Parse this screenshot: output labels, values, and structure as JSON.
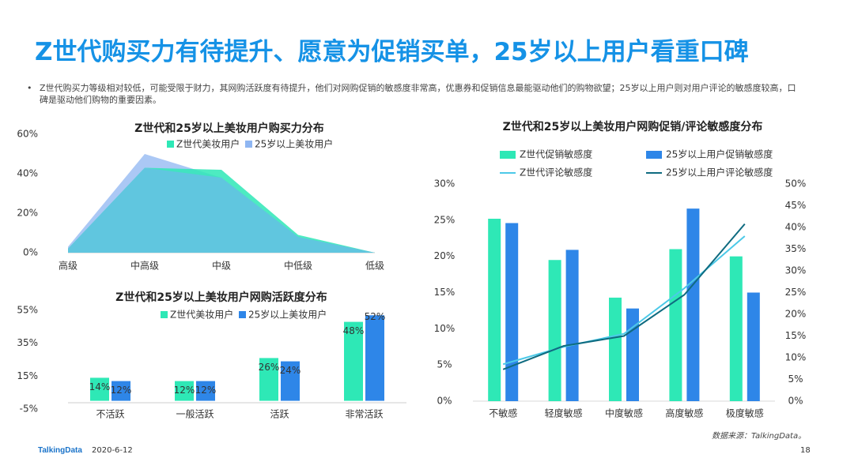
{
  "page": {
    "title": "Z世代购买力有待提升、愿意为促销买单，25岁以上用户看重口碑",
    "bullet": "Z世代购买力等级相对较低，可能受限于财力，其网购活跃度有待提升，他们对网购促销的敏感度非常高，优惠券和促销信息最能驱动他们的购物欲望；25岁以上用户则对用户评论的敏感度较高，口碑是驱动他们购物的重要因素。",
    "source": "数据来源：TalkingData。",
    "footer_logo": "TalkingData",
    "footer_date": "2020-6-12",
    "page_number": "18"
  },
  "colors": {
    "title_blue": "#1592e6",
    "z_green": "#2ee8b6",
    "age25_blue": "#2e86e8",
    "z_line": "#4cc9e8",
    "age25_line": "#0f6b80"
  },
  "chart_data": [
    {
      "type": "area",
      "title": "Z世代和25岁以上美妆用户购买力分布",
      "categories": [
        "高级",
        "中高级",
        "中级",
        "中低级",
        "低级"
      ],
      "series": [
        {
          "name": "Z世代美妆用户",
          "values": [
            2,
            43,
            42,
            9,
            0
          ]
        },
        {
          "name": "25岁以上美妆用户",
          "values": [
            3,
            50,
            38,
            8,
            0
          ]
        }
      ],
      "yticks": [
        "0%",
        "20%",
        "40%",
        "60%"
      ],
      "ylim": [
        0,
        60
      ],
      "legend": "top"
    },
    {
      "type": "bar",
      "title": "Z世代和25岁以上美妆用户网购活跃度分布",
      "categories": [
        "不活跃",
        "一般活跃",
        "活跃",
        "非常活跃"
      ],
      "series": [
        {
          "name": "Z世代美妆用户",
          "values": [
            14,
            12,
            26,
            48
          ],
          "labels": [
            "14%",
            "12%",
            "26%",
            "48%"
          ]
        },
        {
          "name": "25岁以上美妆用户",
          "values": [
            12,
            12,
            24,
            52
          ],
          "labels": [
            "12%",
            "12%",
            "24%",
            "52%"
          ]
        }
      ],
      "yticks": [
        "-5%",
        "15%",
        "35%",
        "55%"
      ],
      "ylim": [
        -5,
        55
      ],
      "legend": "top"
    },
    {
      "type": "bar",
      "title": "Z世代和25岁以上美妆用户网购促销/评论敏感度分布",
      "categories": [
        "不敏感",
        "轻度敏感",
        "中度敏感",
        "高度敏感",
        "极度敏感"
      ],
      "series": [
        {
          "name": "Z世代促销敏感度",
          "axis": "left",
          "values": [
            25.2,
            19.5,
            14.3,
            21.0,
            20.0
          ]
        },
        {
          "name": "25岁以上用户促销敏感度",
          "axis": "left",
          "values": [
            24.6,
            20.9,
            12.8,
            26.6,
            15.0
          ]
        }
      ],
      "lines": [
        {
          "name": "Z世代评论敏感度",
          "axis": "right",
          "values": [
            8.5,
            12.5,
            15.5,
            26.0,
            38.0
          ]
        },
        {
          "name": "25岁以上用户评论敏感度",
          "axis": "right",
          "values": [
            7.3,
            12.7,
            15.0,
            24.5,
            40.8
          ]
        }
      ],
      "yticks_left": [
        "0%",
        "5%",
        "10%",
        "15%",
        "20%",
        "25%",
        "30%"
      ],
      "ylim_left": [
        0,
        30
      ],
      "yticks_right": [
        "0%",
        "5%",
        "10%",
        "15%",
        "20%",
        "25%",
        "30%",
        "35%",
        "40%",
        "45%",
        "50%"
      ],
      "ylim_right": [
        0,
        50
      ],
      "legend": "top"
    }
  ]
}
